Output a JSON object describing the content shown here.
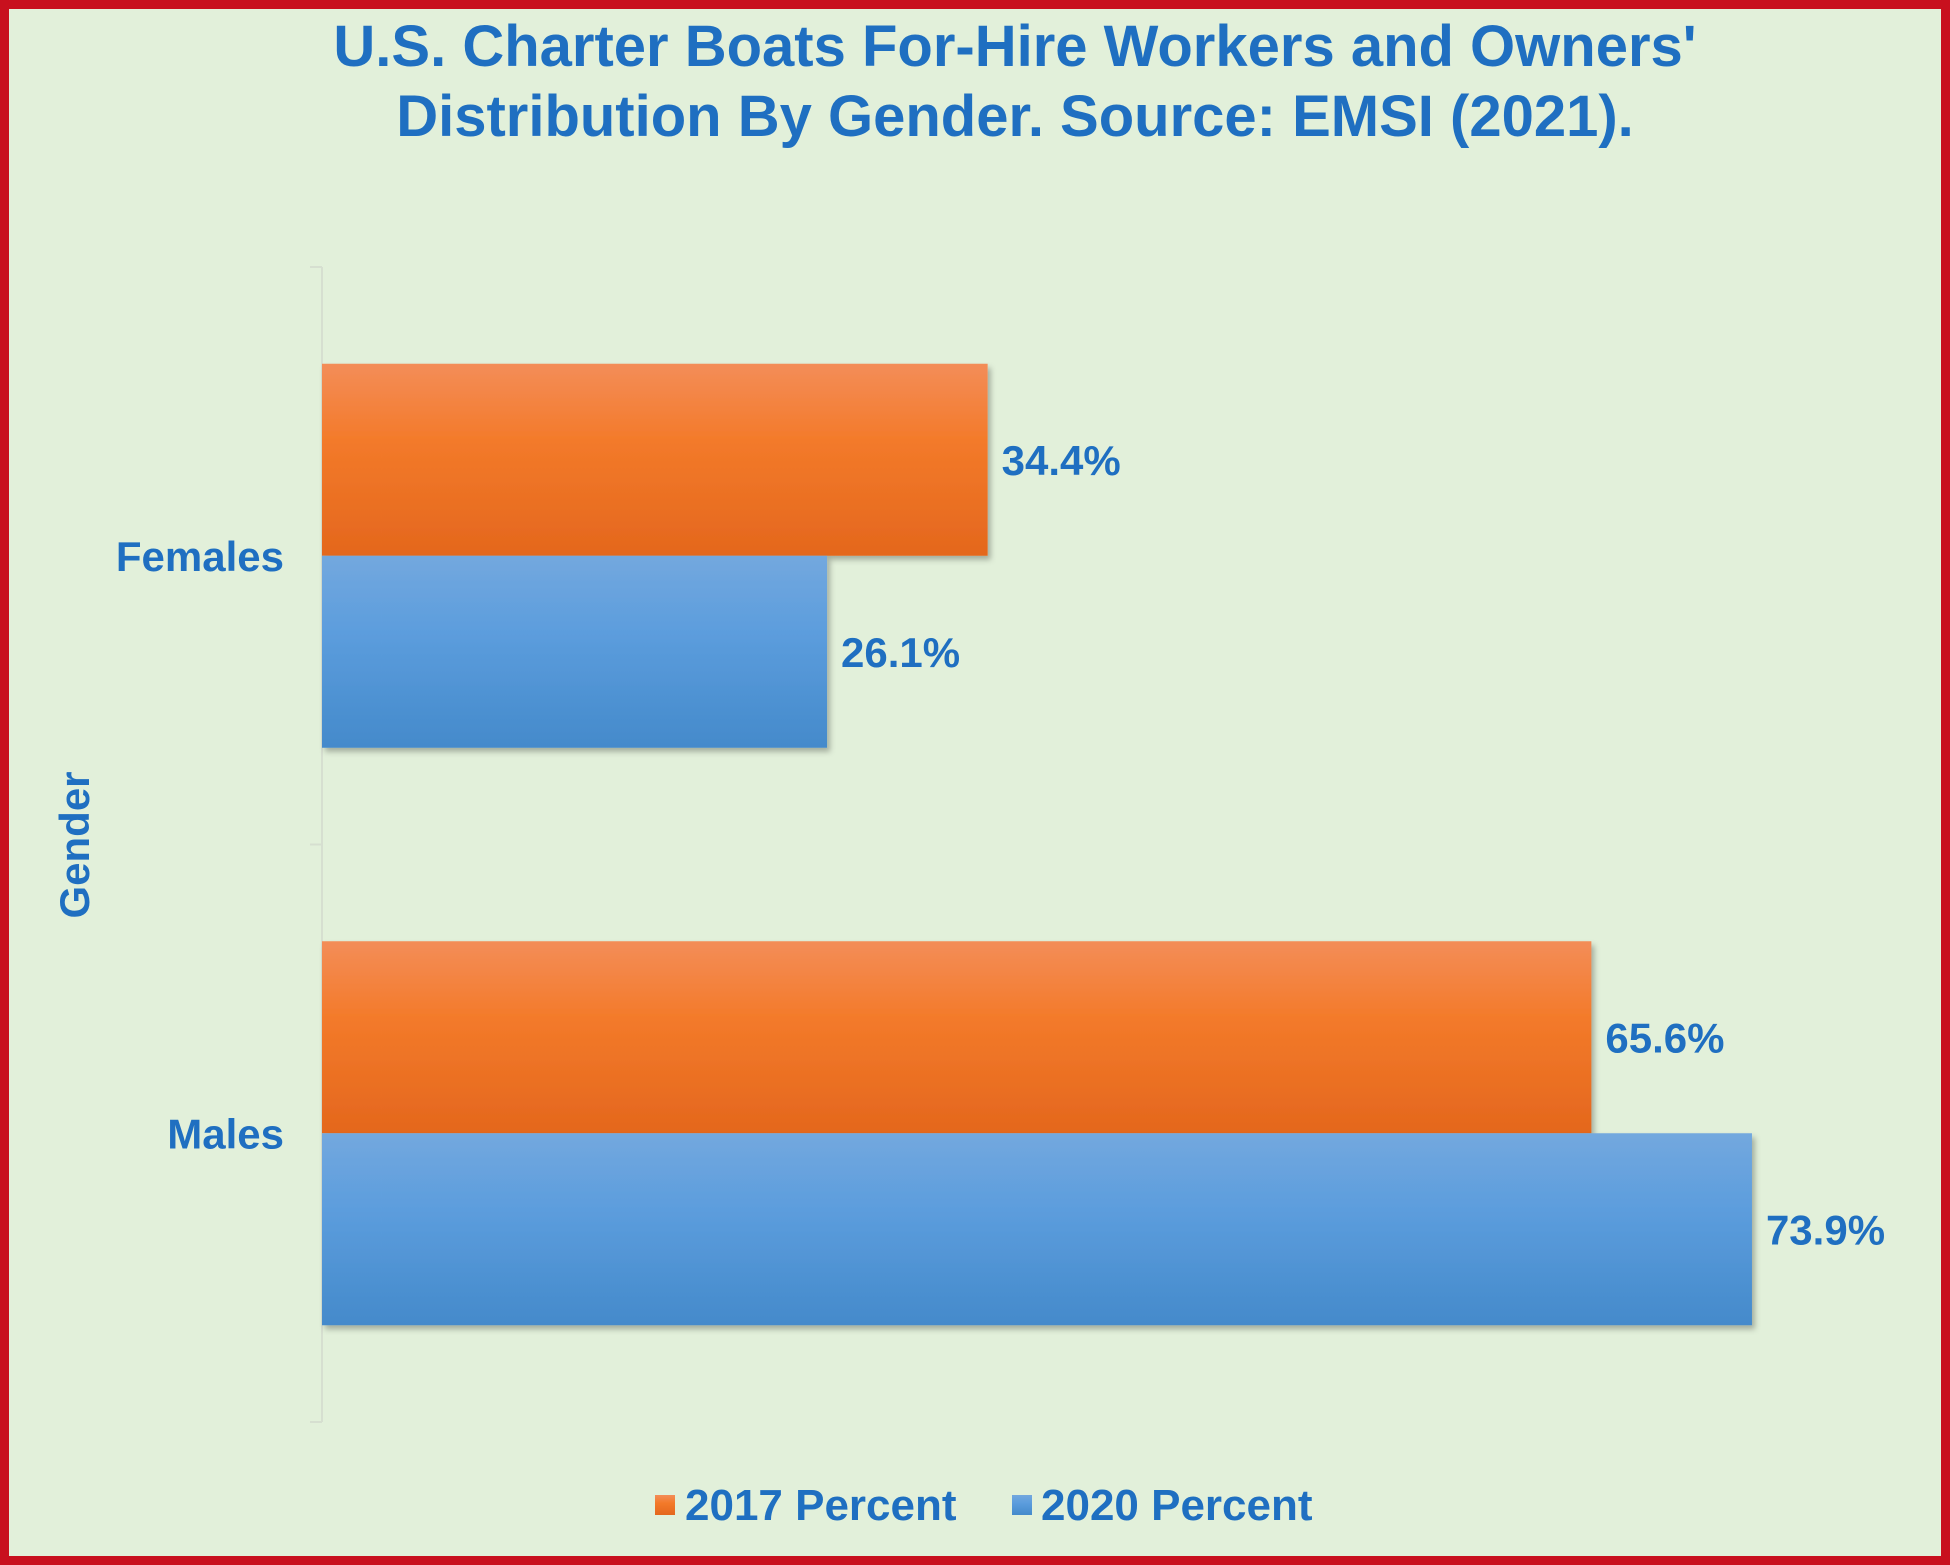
{
  "colors": {
    "frame_border": "#c8101e",
    "background": "#e2f0da",
    "text": "#1f6fc1",
    "series_2017": "#f07a2c",
    "series_2020": "#5598d8"
  },
  "chart_data": {
    "type": "bar",
    "orientation": "horizontal",
    "title_lines": [
      "U.S. Charter Boats For-Hire Workers and Owners'",
      "Distribution By Gender. Source: EMSI (2021)."
    ],
    "ylabel": "Gender",
    "xlabel": "",
    "categories": [
      "Females",
      "Males"
    ],
    "series": [
      {
        "name": "2017 Percent",
        "color": "#f07a2c",
        "values": [
          34.4,
          65.6
        ],
        "labels": [
          "34.4%",
          "65.6%"
        ]
      },
      {
        "name": "2020 Percent",
        "color": "#5598d8",
        "values": [
          26.1,
          73.9
        ],
        "labels": [
          "26.1%",
          "73.9%"
        ]
      }
    ],
    "xlim": [
      0,
      80
    ],
    "grid": false,
    "legend_position": "bottom"
  }
}
